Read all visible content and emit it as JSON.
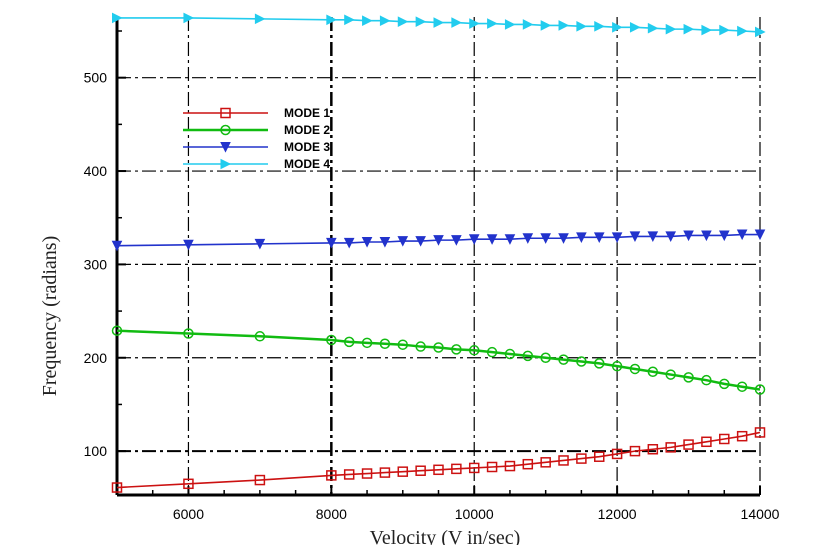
{
  "chart_data": {
    "type": "line",
    "title": "",
    "xlabel": "Velocity (V in/sec)",
    "ylabel": "Frequency (radians)",
    "xlim": [
      5000,
      14000
    ],
    "ylim": [
      53,
      565
    ],
    "x_ticks": [
      6000,
      8000,
      10000,
      12000,
      14000
    ],
    "x_tick_labels": [
      "6000",
      "8000",
      "10000",
      "12000",
      "14000"
    ],
    "y_ticks": [
      100,
      200,
      300,
      400,
      500
    ],
    "y_tick_labels": [
      "100",
      "200",
      "300",
      "400",
      "500"
    ],
    "grid": true,
    "legend_position": "upper-left",
    "x": [
      5000,
      6000,
      7000,
      8000,
      8250,
      8500,
      8750,
      9000,
      9250,
      9500,
      9750,
      10000,
      10250,
      10500,
      10750,
      11000,
      11250,
      11500,
      11750,
      12000,
      12250,
      12500,
      12750,
      13000,
      13250,
      13500,
      13750,
      14000
    ],
    "series": [
      {
        "name": "MODE 1",
        "color": "#cc1111",
        "marker": "square",
        "values": [
          61,
          65,
          69,
          74,
          75,
          76,
          77,
          78,
          79,
          80,
          81,
          82,
          83,
          84,
          86,
          88,
          90,
          92,
          94,
          97,
          100,
          102,
          104,
          107,
          110,
          113,
          116,
          120
        ]
      },
      {
        "name": "MODE 2",
        "color": "#11bb11",
        "marker": "circle",
        "values": [
          229,
          226,
          223,
          219,
          217,
          216,
          215,
          214,
          212,
          211,
          209,
          208,
          206,
          204,
          202,
          200,
          198,
          196,
          194,
          191,
          188,
          185,
          182,
          179,
          176,
          172,
          169,
          166
        ]
      },
      {
        "name": "MODE 3",
        "color": "#2233cc",
        "marker": "triangle-down",
        "values": [
          320,
          321,
          322,
          323,
          323,
          324,
          324,
          325,
          325,
          326,
          326,
          327,
          327,
          327,
          328,
          328,
          328,
          329,
          329,
          329,
          330,
          330,
          330,
          331,
          331,
          331,
          332,
          332
        ]
      },
      {
        "name": "MODE 4",
        "color": "#22ccee",
        "marker": "triangle-right",
        "values": [
          564,
          564,
          563,
          562,
          562,
          561,
          561,
          560,
          560,
          559,
          559,
          558,
          558,
          557,
          557,
          556,
          556,
          555,
          555,
          554,
          554,
          553,
          552,
          552,
          551,
          551,
          550,
          549
        ]
      }
    ]
  }
}
